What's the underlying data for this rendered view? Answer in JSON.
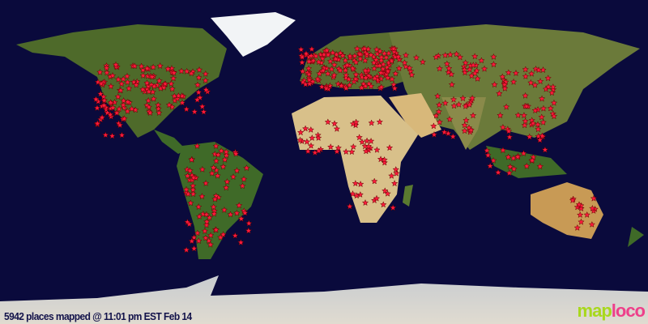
{
  "caption": "5942 places mapped @ 11:01 pm EST Feb 14",
  "logo": {
    "part1": "map",
    "part2": "loco"
  },
  "colors": {
    "ocean": "#0a0a3c",
    "marker": "#ff1a3c",
    "logo_map": "#a8d81c",
    "logo_loco": "#ee3f8a"
  },
  "marker_icon": "star-icon"
}
